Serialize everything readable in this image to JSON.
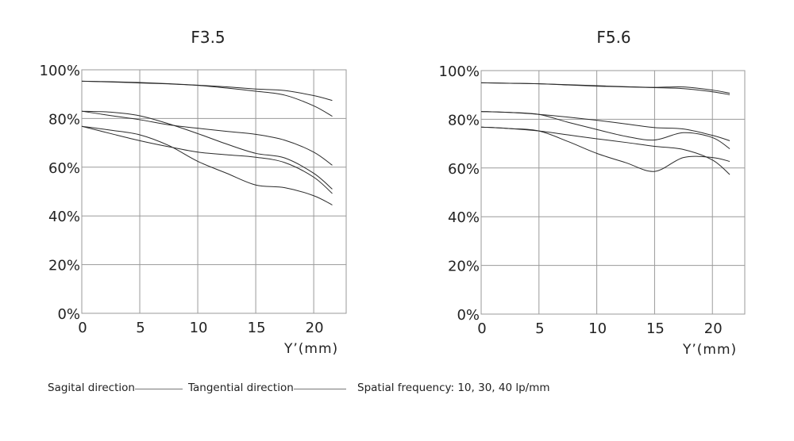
{
  "legend": {
    "sagital": "Sagital direction",
    "tangential": "Tangential  direction",
    "frequency": "Spatial frequency: 10, 30, 40 lp/mm"
  },
  "chart_data": [
    {
      "type": "line",
      "title": "F3.5",
      "xlabel": "Y’(mm)",
      "ylabel": "",
      "xlim": [
        0,
        22.8
      ],
      "ylim": [
        0,
        100
      ],
      "xticks": [
        "0",
        "5",
        "10",
        "15",
        "20"
      ],
      "yticks": [
        "0%",
        "20%",
        "40%",
        "60%",
        "80%",
        "100%"
      ],
      "grid": true,
      "x": [
        0,
        2.5,
        5,
        7.5,
        10,
        12.5,
        15,
        17.5,
        20,
        21.6
      ],
      "series": [
        {
          "name": "10 lp/mm (a)",
          "values": [
            95.3,
            95.1,
            94.8,
            94.3,
            93.7,
            93.0,
            92.1,
            91.5,
            89.4,
            87.4
          ]
        },
        {
          "name": "10 lp/mm (b)",
          "values": [
            95.3,
            95.0,
            94.6,
            94.2,
            93.6,
            92.5,
            91.2,
            89.6,
            85.2,
            80.9
          ]
        },
        {
          "name": "30 lp/mm (a)",
          "values": [
            83.0,
            82.6,
            81.1,
            77.8,
            73.8,
            69.5,
            65.7,
            63.8,
            57.5,
            51.0
          ]
        },
        {
          "name": "30 lp/mm (b)",
          "values": [
            83.0,
            81.2,
            79.5,
            77.4,
            76.0,
            74.7,
            73.5,
            71.1,
            66.2,
            60.8
          ]
        },
        {
          "name": "40 lp/mm (a)",
          "values": [
            76.8,
            75.2,
            73.3,
            68.9,
            62.4,
            57.5,
            52.7,
            51.6,
            48.3,
            44.5
          ]
        },
        {
          "name": "40 lp/mm (b)",
          "values": [
            76.8,
            73.8,
            70.9,
            68.4,
            66.2,
            65.1,
            64.1,
            61.9,
            55.9,
            49.2
          ]
        }
      ]
    },
    {
      "type": "line",
      "title": "F5.6",
      "xlabel": "Y’(mm)",
      "ylabel": "",
      "xlim": [
        0,
        22.8
      ],
      "ylim": [
        0,
        100
      ],
      "xticks": [
        "0",
        "5",
        "10",
        "15",
        "20"
      ],
      "yticks": [
        "0%",
        "20%",
        "40%",
        "60%",
        "80%",
        "100%"
      ],
      "grid": true,
      "x": [
        0,
        2.5,
        5,
        7.5,
        10,
        12.5,
        15,
        17.5,
        20,
        21.5
      ],
      "series": [
        {
          "name": "10 lp/mm (a)",
          "values": [
            95.0,
            94.8,
            94.6,
            94.2,
            93.8,
            93.4,
            93.1,
            93.3,
            92.0,
            90.7
          ]
        },
        {
          "name": "10 lp/mm (b)",
          "values": [
            95.0,
            94.8,
            94.6,
            94.1,
            93.6,
            93.3,
            93.0,
            92.6,
            91.3,
            90.1
          ]
        },
        {
          "name": "30 lp/mm (a)",
          "values": [
            83.2,
            82.8,
            82.0,
            80.9,
            79.6,
            78.1,
            76.6,
            76.0,
            73.4,
            71.2
          ]
        },
        {
          "name": "30 lp/mm (b)",
          "values": [
            83.2,
            82.8,
            82.0,
            78.8,
            75.8,
            73.0,
            71.5,
            74.5,
            72.5,
            67.9
          ]
        },
        {
          "name": "40 lp/mm (a)",
          "values": [
            76.8,
            76.2,
            75.2,
            73.6,
            72.0,
            70.5,
            68.9,
            67.6,
            63.3,
            57.3
          ]
        },
        {
          "name": "40 lp/mm (b)",
          "values": [
            76.8,
            76.2,
            75.2,
            70.9,
            66.0,
            62.2,
            58.6,
            64.3,
            64.3,
            62.7
          ]
        }
      ]
    }
  ]
}
